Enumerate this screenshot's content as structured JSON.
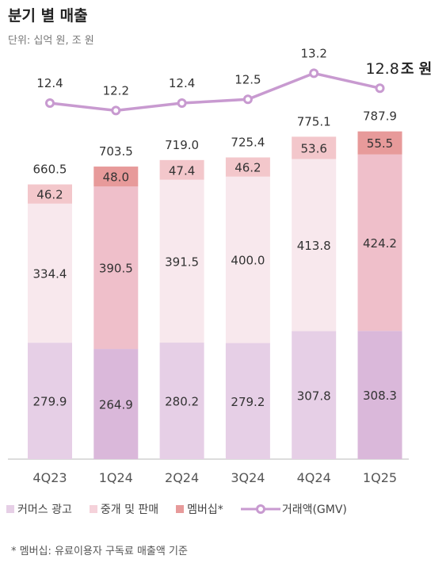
{
  "chart": {
    "title": "분기 별 매출",
    "unit": "단위: 십억 원, 조 원",
    "footnote": "* 멤버십: 유료이용자 구독료 매출액 기준",
    "colors": {
      "commerce_ads": "#e6cfe6",
      "commerce_ads_highlight": "#dab8da",
      "brokerage": "#f8e8ed",
      "brokerage_highlight": "#efbfca",
      "membership": "#f3c7cb",
      "membership_highlight": "#e79a9a",
      "gmv_line": "#c89ad0",
      "axis": "#bbbbbb"
    },
    "legend": [
      {
        "label": "커머스 광고",
        "color": "#e6cfe6"
      },
      {
        "label": "중개 및 판매",
        "color": "#f5d2da"
      },
      {
        "label": "멤버십*",
        "color": "#e79a9a"
      },
      {
        "label": "거래액(GMV)",
        "color": "#c89ad0"
      }
    ]
  },
  "chart_data": {
    "type": "bar",
    "stacked": true,
    "categories": [
      "4Q23",
      "1Q24",
      "2Q24",
      "3Q24",
      "4Q24",
      "1Q25"
    ],
    "series": [
      {
        "name": "커머스 광고",
        "values": [
          279.9,
          264.9,
          280.2,
          279.2,
          307.8,
          308.3
        ]
      },
      {
        "name": "중개 및 판매",
        "values": [
          334.4,
          390.5,
          391.5,
          400.0,
          413.8,
          424.2
        ]
      },
      {
        "name": "멤버십*",
        "values": [
          46.2,
          48.0,
          47.4,
          46.2,
          53.6,
          55.5
        ]
      }
    ],
    "totals": [
      "660.5",
      "703.5",
      "719.0",
      "725.4",
      "775.1",
      "787.9"
    ],
    "segment_labels": [
      [
        "279.9",
        "264.9",
        "280.2",
        "279.2",
        "307.8",
        "308.3"
      ],
      [
        "334.4",
        "390.5",
        "391.5",
        "400.0",
        "413.8",
        "424.2"
      ],
      [
        "46.2",
        "48.0",
        "47.4",
        "46.2",
        "53.6",
        "55.5"
      ]
    ],
    "highlighted": [
      false,
      true,
      false,
      false,
      false,
      true
    ],
    "line": {
      "name": "거래액(GMV)",
      "values": [
        12.4,
        12.2,
        12.4,
        12.5,
        13.2,
        12.8
      ],
      "labels": [
        "12.4",
        "12.2",
        "12.4",
        "12.5",
        "13.2",
        "12.8"
      ],
      "last_value_text": "12.8",
      "last_unit_text": "조 원",
      "ylim": [
        11.3,
        13.5
      ]
    },
    "ylim": [
      0,
      880
    ],
    "grid": false
  }
}
